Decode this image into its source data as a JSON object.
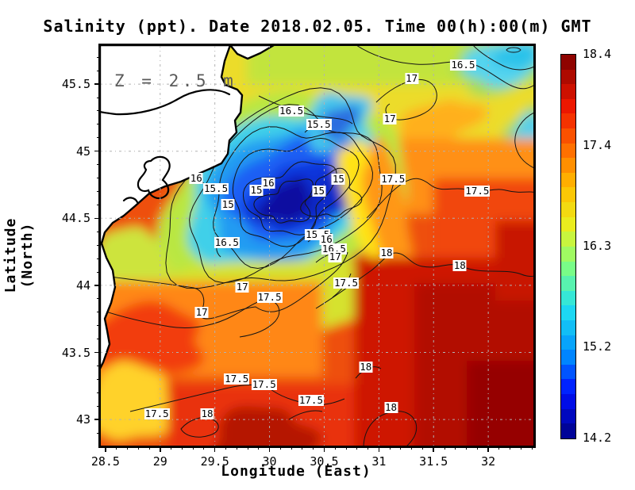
{
  "chart_data": {
    "type": "heatmap",
    "title": "Salinity (ppt). Date 2018.02.05. Time 00(h):00(m) GMT",
    "annotation": "Z = 2.5 m",
    "xlabel": "Longitude (East)",
    "ylabel": "Latitude (North)",
    "xlim": [
      28.45,
      32.42
    ],
    "ylim": [
      42.8,
      45.79
    ],
    "x_ticks": [
      {
        "label": "28.5",
        "value": 28.5
      },
      {
        "label": "29",
        "value": 29
      },
      {
        "label": "29.5",
        "value": 29.5
      },
      {
        "label": "30",
        "value": 30
      },
      {
        "label": "30.5",
        "value": 30.5
      },
      {
        "label": "31",
        "value": 31
      },
      {
        "label": "31.5",
        "value": 31.5
      },
      {
        "label": "32",
        "value": 32
      }
    ],
    "y_ticks": [
      {
        "label": "45.5",
        "value": 45.5
      },
      {
        "label": "45",
        "value": 45
      },
      {
        "label": "44.5",
        "value": 44.5
      },
      {
        "label": "44",
        "value": 44
      },
      {
        "label": "43.5",
        "value": 43.5
      },
      {
        "label": "43",
        "value": 43
      }
    ],
    "minor_tick_step": 0.1,
    "grid": true,
    "colorbar": {
      "min": 14.2,
      "max": 18.4,
      "steps": 26,
      "colormap": "jet",
      "ticks": [
        {
          "label": "18.4",
          "value": 18.4
        },
        {
          "label": "17.4",
          "value": 17.4
        },
        {
          "label": "16.3",
          "value": 16.3
        },
        {
          "label": "15.2",
          "value": 15.2
        },
        {
          "label": "14.2",
          "value": 14.2
        }
      ]
    },
    "colormap_stops": [
      [
        0.0,
        "#000084"
      ],
      [
        0.12,
        "#0010ff"
      ],
      [
        0.22,
        "#0090ff"
      ],
      [
        0.34,
        "#20e0f0"
      ],
      [
        0.45,
        "#80ff80"
      ],
      [
        0.55,
        "#e8f020"
      ],
      [
        0.65,
        "#ffc000"
      ],
      [
        0.75,
        "#ff7000"
      ],
      [
        0.86,
        "#f01800"
      ],
      [
        1.0,
        "#7f0000"
      ]
    ],
    "contour_levels_labeled": [
      15,
      15.5,
      16,
      16.5,
      17,
      17.5,
      18
    ],
    "contour_labels": [
      {
        "value": "16.5",
        "lon": 31.77,
        "lat": 45.64
      },
      {
        "value": "17",
        "lon": 31.3,
        "lat": 45.54
      },
      {
        "value": "16.5",
        "lon": 30.2,
        "lat": 45.3
      },
      {
        "value": "15.5",
        "lon": 30.45,
        "lat": 45.2
      },
      {
        "value": "17",
        "lon": 31.1,
        "lat": 45.24
      },
      {
        "value": "16",
        "lon": 29.33,
        "lat": 44.8
      },
      {
        "value": "15.5",
        "lon": 29.51,
        "lat": 44.72
      },
      {
        "value": "16",
        "lon": 29.99,
        "lat": 44.76
      },
      {
        "value": "15",
        "lon": 29.88,
        "lat": 44.71
      },
      {
        "value": "15",
        "lon": 29.62,
        "lat": 44.6
      },
      {
        "value": "15",
        "lon": 30.45,
        "lat": 44.7
      },
      {
        "value": "15",
        "lon": 30.63,
        "lat": 44.79
      },
      {
        "value": "16.5",
        "lon": 29.61,
        "lat": 44.32
      },
      {
        "value": "15.5",
        "lon": 30.44,
        "lat": 44.38
      },
      {
        "value": "16",
        "lon": 30.52,
        "lat": 44.34
      },
      {
        "value": "16.5",
        "lon": 30.59,
        "lat": 44.27
      },
      {
        "value": "17",
        "lon": 30.6,
        "lat": 44.21
      },
      {
        "value": "17.5",
        "lon": 30.7,
        "lat": 44.02
      },
      {
        "value": "18",
        "lon": 31.07,
        "lat": 44.24
      },
      {
        "value": "18",
        "lon": 31.74,
        "lat": 44.15
      },
      {
        "value": "17.5",
        "lon": 31.13,
        "lat": 44.79
      },
      {
        "value": "17.5",
        "lon": 31.9,
        "lat": 44.7
      },
      {
        "value": "17",
        "lon": 29.75,
        "lat": 43.99
      },
      {
        "value": "17.5",
        "lon": 30.0,
        "lat": 43.91
      },
      {
        "value": "17",
        "lon": 29.38,
        "lat": 43.8
      },
      {
        "value": "17.5",
        "lon": 29.7,
        "lat": 43.3
      },
      {
        "value": "17.5",
        "lon": 29.95,
        "lat": 43.26
      },
      {
        "value": "17.5",
        "lon": 30.38,
        "lat": 43.14
      },
      {
        "value": "17.5",
        "lon": 28.97,
        "lat": 43.04
      },
      {
        "value": "18",
        "lon": 29.43,
        "lat": 43.04
      },
      {
        "value": "18",
        "lon": 30.88,
        "lat": 43.39
      },
      {
        "value": "18",
        "lon": 31.11,
        "lat": 43.09
      }
    ],
    "field_features": {
      "low_salinity_pool": {
        "value_ppt": "<15",
        "center_lon": 30.2,
        "center_lat": 44.6
      },
      "high_salinity_area": {
        "value_ppt": ">18",
        "region": "southeast"
      },
      "land_mask": "northwest coastal land shown white with black coastline"
    },
    "colors": {
      "land": "#ffffff",
      "coastline": "#000000",
      "grid": "#b2b2b2",
      "frame": "#000000",
      "contour": "#141414",
      "annotation_text": "#5a5a5a",
      "background": "#ffffff"
    }
  }
}
